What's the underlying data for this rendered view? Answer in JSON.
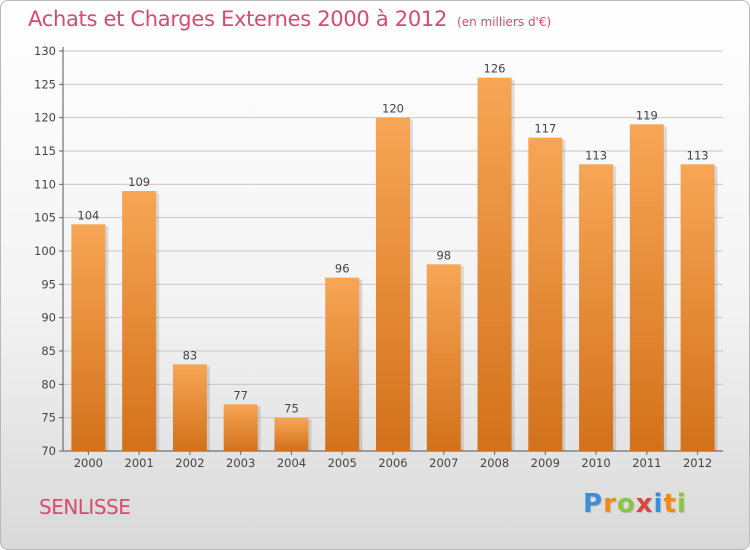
{
  "chart_data": {
    "type": "bar",
    "title": "Achats et Charges Externes 2000 à 2012",
    "subtitle": "(en milliers d'€)",
    "categories": [
      "2000",
      "2001",
      "2002",
      "2003",
      "2004",
      "2005",
      "2006",
      "2007",
      "2008",
      "2009",
      "2010",
      "2011",
      "2012"
    ],
    "values": [
      104,
      109,
      83,
      77,
      75,
      96,
      120,
      98,
      126,
      117,
      113,
      119,
      113
    ],
    "ylim": [
      70,
      130
    ],
    "yticks": [
      70,
      75,
      80,
      85,
      90,
      95,
      100,
      105,
      110,
      115,
      120,
      125,
      130
    ],
    "grid": true,
    "colors": {
      "bar_top": "#f7a655",
      "bar_bottom": "#d3711b",
      "title": "#d84b6e"
    }
  },
  "location": "SENLISSE",
  "logo": {
    "letters": [
      "P",
      "r",
      "o",
      "x",
      "i",
      "t",
      "i"
    ],
    "colors": [
      "#3b8ed6",
      "#f08a1a",
      "#8cc63e",
      "#d7463f",
      "#3b8ed6",
      "#f08a1a",
      "#8cc63e"
    ]
  }
}
